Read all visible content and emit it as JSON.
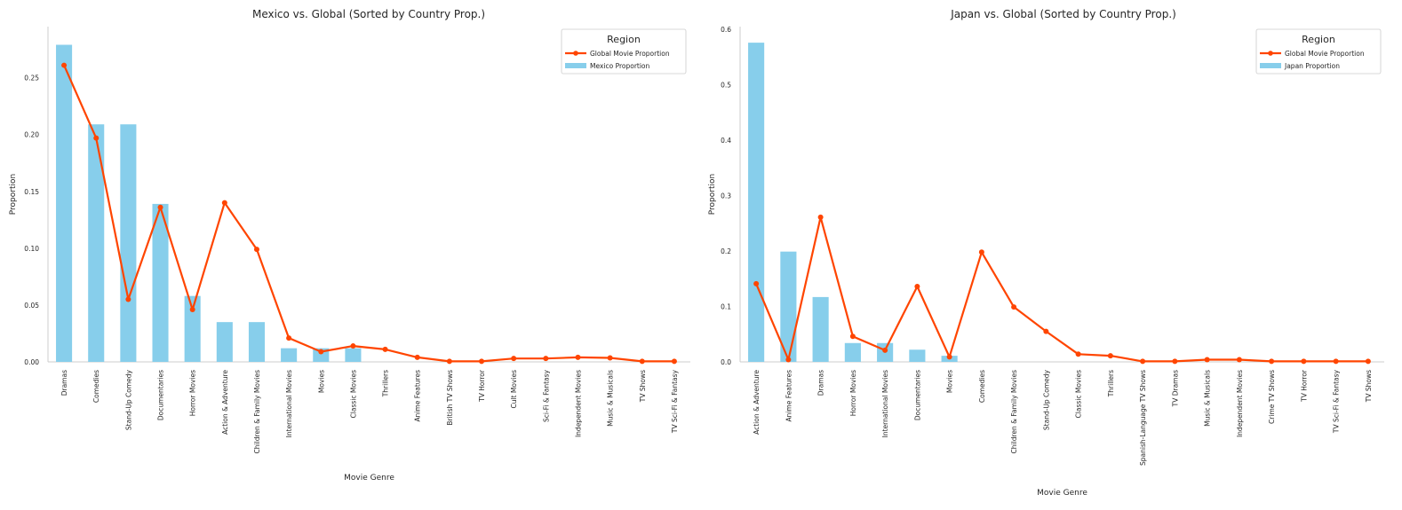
{
  "colors": {
    "bar": "#87CEEB",
    "line": "#FF4500",
    "axis": "#cccccc",
    "legend_border": "#cccccc"
  },
  "chart_data": [
    {
      "type": "bar",
      "title": "Mexico vs. Global (Sorted by Country Prop.)",
      "xlabel": "Movie Genre",
      "ylabel": "Proportion",
      "ylim": [
        0,
        0.295
      ],
      "yticks": [
        "0.00",
        "0.05",
        "0.10",
        "0.15",
        "0.20",
        "0.25"
      ],
      "ytick_values": [
        0,
        0.05,
        0.1,
        0.15,
        0.2,
        0.25
      ],
      "grid": false,
      "legend": {
        "title": "Region",
        "placement": "top-right",
        "entries": [
          "Global Movie Proportion",
          "Mexico Proportion"
        ]
      },
      "categories": [
        "Dramas",
        "Comedies",
        "Stand-Up Comedy",
        "Documentaries",
        "Horror Movies",
        "Action & Adventure",
        "Children & Family Movies",
        "International Movies",
        "Movies",
        "Classic Movies",
        "Thrillers",
        "Anime Features",
        "British TV Shows",
        "TV Horror",
        "Cult Movies",
        "Sci-Fi & Fantasy",
        "Independent Movies",
        "Music & Musicals",
        "TV Shows",
        "TV Sci-Fi & Fantasy"
      ],
      "series": [
        {
          "name": "Mexico Proportion",
          "type": "bar",
          "values": [
            0.279,
            0.209,
            0.209,
            0.139,
            0.058,
            0.035,
            0.035,
            0.012,
            0.012,
            0.012,
            0,
            0,
            0,
            0,
            0,
            0,
            0,
            0,
            0,
            0
          ]
        },
        {
          "name": "Global Movie Proportion",
          "type": "line",
          "values": [
            0.261,
            0.197,
            0.055,
            0.136,
            0.046,
            0.14,
            0.099,
            0.021,
            0.009,
            0.014,
            0.011,
            0.004,
            0.0005,
            0.0005,
            0.003,
            0.003,
            0.004,
            0.0035,
            0.0005,
            0.0005
          ]
        }
      ]
    },
    {
      "type": "bar",
      "title": "Japan vs. Global (Sorted by Country Prop.)",
      "xlabel": "Movie Genre",
      "ylabel": "Proportion",
      "ylim": [
        0,
        0.605
      ],
      "yticks": [
        "0.0",
        "0.1",
        "0.2",
        "0.3",
        "0.4",
        "0.5",
        "0.6"
      ],
      "ytick_values": [
        0,
        0.1,
        0.2,
        0.3,
        0.4,
        0.5,
        0.6
      ],
      "grid": false,
      "legend": {
        "title": "Region",
        "placement": "top-right",
        "entries": [
          "Global Movie Proportion",
          "Japan Proportion"
        ]
      },
      "categories": [
        "Action & Adventure",
        "Anime Features",
        "Dramas",
        "Horror Movies",
        "International Movies",
        "Documentaries",
        "Movies",
        "Comedies",
        "Children & Family Movies",
        "Stand-Up Comedy",
        "Classic Movies",
        "Thrillers",
        "Spanish-Language TV Shows",
        "TV Dramas",
        "Music & Musicals",
        "Independent Movies",
        "Crime TV Shows",
        "TV Horror",
        "TV Sci-Fi & Fantasy",
        "TV Shows"
      ],
      "series": [
        {
          "name": "Japan Proportion",
          "type": "bar",
          "values": [
            0.576,
            0.199,
            0.117,
            0.034,
            0.034,
            0.022,
            0.011,
            0,
            0,
            0,
            0,
            0,
            0,
            0,
            0,
            0,
            0,
            0,
            0,
            0
          ]
        },
        {
          "name": "Global Movie Proportion",
          "type": "line",
          "values": [
            0.141,
            0.004,
            0.261,
            0.046,
            0.021,
            0.136,
            0.009,
            0.198,
            0.099,
            0.055,
            0.014,
            0.011,
            0.001,
            0.001,
            0.004,
            0.004,
            0.001,
            0.001,
            0.001,
            0.001
          ]
        }
      ]
    }
  ]
}
